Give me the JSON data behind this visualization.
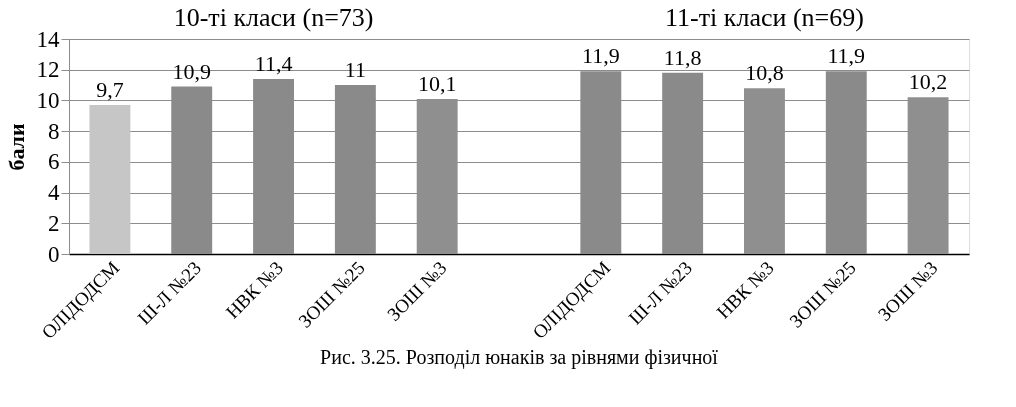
{
  "chart_data": {
    "type": "bar",
    "ylabel": "бали",
    "categories": [
      "ОЛІДОДСМ",
      "Ш-Л №23",
      "НВК №3",
      "ЗОШ №25",
      "ЗОШ №3",
      null,
      "ОЛІДОДСМ",
      "Ш-Л №23",
      "НВК №3",
      "ЗОШ №25",
      "ЗОШ №3"
    ],
    "values": [
      9.7,
      10.9,
      11.4,
      11,
      10.1,
      null,
      11.9,
      11.8,
      10.8,
      11.9,
      10.2
    ],
    "value_labels": [
      "9,7",
      "10,9",
      "11,4",
      "11",
      "10,1",
      null,
      "11,9",
      "11,8",
      "10,8",
      "11,9",
      "10,2"
    ],
    "colors": [
      "#c6c6c6",
      "#8a8a8a",
      "#8a8a8a",
      "#8a8a8a",
      "#8f8f8f",
      null,
      "#8a8a8a",
      "#8a8a8a",
      "#8f8f8f",
      "#8a8a8a",
      "#8f8f8f"
    ],
    "ylim": [
      0,
      14
    ],
    "yticks": [
      0,
      2,
      4,
      6,
      8,
      10,
      12,
      14
    ],
    "grid": "y",
    "annotations": [
      "10-ті класи (n=73)",
      "11-ті класи (n=69)",
      "Рис. 3.25. Розподіл юнаків за рівнями фізичної"
    ]
  }
}
